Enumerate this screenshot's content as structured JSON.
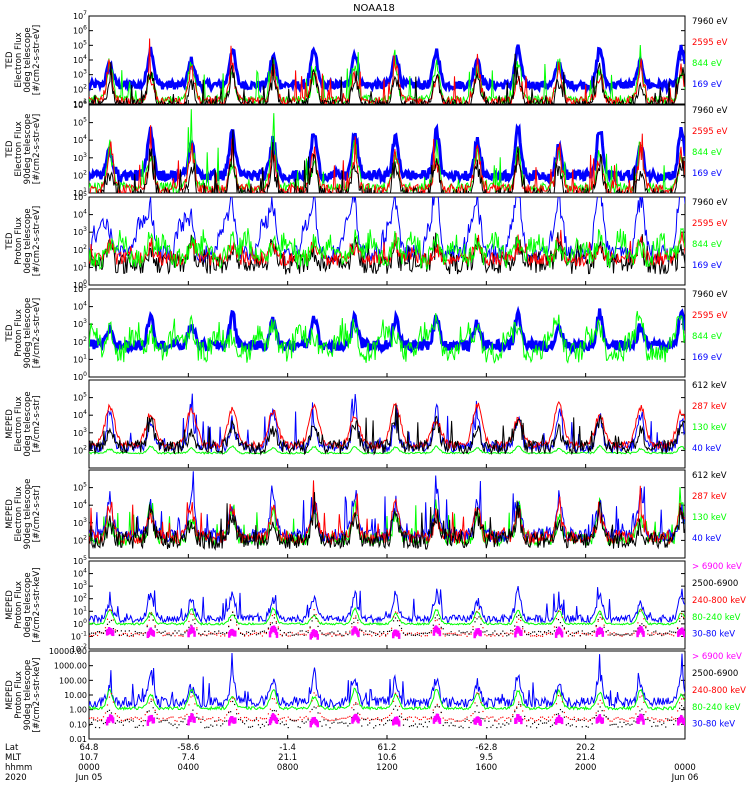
{
  "title": "NOAA18",
  "colors": {
    "black": "#000000",
    "red": "#ff0000",
    "green": "#00ff00",
    "blue": "#0000ff",
    "magenta": "#ff00ff"
  },
  "chart_data": [
    {
      "type": "line",
      "ylabel": [
        "TED",
        "Electron Flux",
        "0deg telescope",
        "[#/cm2-s-str-eV]"
      ],
      "ylog": true,
      "ylim_exp": [
        1,
        7
      ],
      "ytick_labels": [
        "10^1",
        "10^2",
        "10^3",
        "10^4",
        "10^5",
        "10^6",
        "10^7"
      ],
      "legend": [
        {
          "label": "7960 eV",
          "color": "#000000"
        },
        {
          "label": "2595 eV",
          "color": "#ff0000"
        },
        {
          "label": "844 eV",
          "color": "#00ff00"
        },
        {
          "label": "169 eV",
          "color": "#0000ff"
        }
      ],
      "series": [
        {
          "color": "#0000ff",
          "base": 2.3,
          "noise": 0.3,
          "peak": 2.5,
          "kind": "band"
        },
        {
          "color": "#00ff00",
          "base": 1.3,
          "noise": 0.3,
          "peak": 3.2,
          "kind": "spiky"
        },
        {
          "color": "#ff0000",
          "base": 1.2,
          "noise": 0.3,
          "peak": 3.0,
          "kind": "spiky"
        },
        {
          "color": "#000000",
          "base": 1.0,
          "noise": 0.3,
          "peak": 2.8,
          "kind": "spiky"
        }
      ]
    },
    {
      "type": "line",
      "ylabel": [
        "TED",
        "Electron Flux",
        "90deg telescope",
        "[#/cm2-s-str-eV]"
      ],
      "ylog": true,
      "ylim_exp": [
        1,
        6
      ],
      "ytick_labels": [
        "10^1",
        "10^2",
        "10^3",
        "10^4",
        "10^5",
        "10^6"
      ],
      "legend": [
        {
          "label": "7960 eV",
          "color": "#000000"
        },
        {
          "label": "2595 eV",
          "color": "#ff0000"
        },
        {
          "label": "844 eV",
          "color": "#00ff00"
        },
        {
          "label": "169 eV",
          "color": "#0000ff"
        }
      ],
      "series": [
        {
          "color": "#0000ff",
          "base": 2.0,
          "noise": 0.3,
          "peak": 2.6,
          "kind": "band"
        },
        {
          "color": "#00ff00",
          "base": 1.3,
          "noise": 0.3,
          "peak": 3.0,
          "kind": "spiky"
        },
        {
          "color": "#ff0000",
          "base": 1.2,
          "noise": 0.3,
          "peak": 2.8,
          "kind": "spiky"
        },
        {
          "color": "#000000",
          "base": 0.9,
          "noise": 0.4,
          "peak": 2.6,
          "kind": "spiky"
        }
      ]
    },
    {
      "type": "line",
      "ylabel": [
        "TED",
        "Proton Flux",
        "0deg telescope",
        "[#/cm2-s-str-eV]"
      ],
      "ylog": true,
      "ylim_exp": [
        0,
        5
      ],
      "ytick_labels": [
        "10^0",
        "10^1",
        "10^2",
        "10^3",
        "10^4",
        "10^5"
      ],
      "legend": [
        {
          "label": "7960 eV",
          "color": "#000000"
        },
        {
          "label": "2595 eV",
          "color": "#ff0000"
        },
        {
          "label": "844 eV",
          "color": "#00ff00"
        },
        {
          "label": "169 eV",
          "color": "#0000ff"
        }
      ],
      "series": [
        {
          "color": "#0000ff",
          "base": 1.8,
          "noise": 0.5,
          "peak": 2.3,
          "kind": "wavy"
        },
        {
          "color": "#000000",
          "base": 1.2,
          "noise": 0.6,
          "peak": 1.5,
          "kind": "spiky"
        },
        {
          "color": "#ff0000",
          "base": 1.5,
          "noise": 0.4,
          "peak": 1.2,
          "kind": "spiky"
        },
        {
          "color": "#00ff00",
          "base": 1.5,
          "noise": 0.6,
          "peak": 1.3,
          "kind": "wavy"
        }
      ]
    },
    {
      "type": "line",
      "ylabel": [
        "TED",
        "Proton Flux",
        "90deg telescope",
        "[#/cm2-s-str-eV]"
      ],
      "ylog": true,
      "ylim_exp": [
        0,
        5
      ],
      "ytick_labels": [
        "10^0",
        "10^1",
        "10^2",
        "10^3",
        "10^4",
        "10^5"
      ],
      "legend": [
        {
          "label": "7960 eV",
          "color": "#000000"
        },
        {
          "label": "2595 eV",
          "color": "#ff0000"
        },
        {
          "label": "844 eV",
          "color": "#00ff00"
        },
        {
          "label": "169 eV",
          "color": "#0000ff"
        }
      ],
      "series": [
        {
          "color": "#0000ff",
          "base": 1.8,
          "noise": 0.3,
          "peak": 1.8,
          "kind": "band"
        },
        {
          "color": "#00ff00",
          "base": 1.4,
          "noise": 0.6,
          "peak": 1.6,
          "kind": "wavy"
        }
      ]
    },
    {
      "type": "line",
      "ylabel": [
        "MEPED",
        "Electron Flux",
        "0deg telescope",
        "[#/cm2-s-str]"
      ],
      "ylog": true,
      "ylim_exp": [
        1,
        6
      ],
      "ytick_labels": [
        "10^2",
        "10^3",
        "10^4",
        "10^5"
      ],
      "ytick_exps": [
        2,
        3,
        4,
        5
      ],
      "legend": [
        {
          "label": "612 keV",
          "color": "#000000"
        },
        {
          "label": "287 keV",
          "color": "#ff0000"
        },
        {
          "label": "130 keV",
          "color": "#00ff00"
        },
        {
          "label": "40 keV",
          "color": "#0000ff"
        }
      ],
      "series": [
        {
          "color": "#00ff00",
          "base": 1.85,
          "noise": 0.05,
          "peak": 0.4,
          "kind": "flat"
        },
        {
          "color": "#0000ff",
          "base": 2.2,
          "noise": 0.3,
          "peak": 2.5,
          "kind": "spiky"
        },
        {
          "color": "#ff0000",
          "base": 2.3,
          "noise": 0.2,
          "peak": 2.3,
          "kind": "hump"
        },
        {
          "color": "#000000",
          "base": 2.2,
          "noise": 0.4,
          "peak": 2.0,
          "kind": "spiky"
        }
      ]
    },
    {
      "type": "line",
      "ylabel": [
        "MEPED",
        "Electron Flux",
        "90deg telescope",
        "[#/cm2-s-str]"
      ],
      "ylog": true,
      "ylim_exp": [
        1,
        6
      ],
      "ytick_labels": [
        "10^2",
        "10^3",
        "10^4",
        "10^5"
      ],
      "ytick_exps": [
        2,
        3,
        4,
        5
      ],
      "legend": [
        {
          "label": "612 keV",
          "color": "#000000"
        },
        {
          "label": "287 keV",
          "color": "#ff0000"
        },
        {
          "label": "130 keV",
          "color": "#00ff00"
        },
        {
          "label": "40 keV",
          "color": "#0000ff"
        }
      ],
      "series": [
        {
          "color": "#00ff00",
          "base": 2.1,
          "noise": 0.4,
          "peak": 2.2,
          "kind": "spiky"
        },
        {
          "color": "#0000ff",
          "base": 2.3,
          "noise": 0.4,
          "peak": 2.8,
          "kind": "spiky"
        },
        {
          "color": "#ff0000",
          "base": 2.2,
          "noise": 0.4,
          "peak": 2.4,
          "kind": "spiky"
        },
        {
          "color": "#000000",
          "base": 2.0,
          "noise": 0.5,
          "peak": 2.0,
          "kind": "spiky"
        }
      ]
    },
    {
      "type": "line",
      "ylabel": [
        "MEPED",
        "Proton Flux",
        "0deg telescope",
        "[#/cm2-s-str-keV]"
      ],
      "ylog": true,
      "ylim_exp": [
        -2,
        5
      ],
      "ytick_labels": [
        "10^-2",
        "10^-1",
        "10^0",
        "10^1",
        "10^2",
        "10^3",
        "10^4",
        "10^5"
      ],
      "legend": [
        {
          "label": "> 6900 keV",
          "color": "#ff00ff"
        },
        {
          "label": "2500-6900",
          "color": "#000000"
        },
        {
          "label": "240-800 keV",
          "color": "#ff0000"
        },
        {
          "label": "80-240 keV",
          "color": "#00ff00"
        },
        {
          "label": "30-80 keV",
          "color": "#0000ff"
        }
      ],
      "series": [
        {
          "color": "#0000ff",
          "base": 0.4,
          "noise": 0.3,
          "peak": 2.5,
          "kind": "spiky"
        },
        {
          "color": "#00ff00",
          "base": 0.0,
          "noise": 0.08,
          "peak": 1.2,
          "kind": "flat"
        },
        {
          "color": "#ff0000",
          "base": -0.8,
          "noise": 0.15,
          "peak": 2.0,
          "kind": "dots"
        },
        {
          "color": "#000000",
          "base": -0.7,
          "noise": 0.2,
          "peak": 1.5,
          "kind": "dots"
        },
        {
          "color": "#ff00ff",
          "base": -1.2,
          "noise": 0.1,
          "peak": 0.8,
          "kind": "blocks"
        }
      ]
    },
    {
      "type": "line",
      "ylabel": [
        "MEPED",
        "Proton Flux",
        "90deg telescope",
        "[#/cm2-s-str-keV]"
      ],
      "ylog": true,
      "ylim_exp": [
        -2,
        4
      ],
      "ytick_labels": [
        "0.01",
        "0.10",
        "1.00",
        "10.00",
        "100.00",
        "1000.00",
        "10000.00"
      ],
      "legend": [
        {
          "label": "> 6900 keV",
          "color": "#ff00ff"
        },
        {
          "label": "2500-6900",
          "color": "#000000"
        },
        {
          "label": "240-800 keV",
          "color": "#ff0000"
        },
        {
          "label": "80-240 keV",
          "color": "#00ff00"
        },
        {
          "label": "30-80 keV",
          "color": "#0000ff"
        }
      ],
      "series": [
        {
          "color": "#0000ff",
          "base": 0.5,
          "noise": 0.35,
          "peak": 2.2,
          "kind": "spiky"
        },
        {
          "color": "#00ff00",
          "base": 0.1,
          "noise": 0.1,
          "peak": 1.3,
          "kind": "flat"
        },
        {
          "color": "#ff0000",
          "base": -0.6,
          "noise": 0.15,
          "peak": 1.8,
          "kind": "dots"
        },
        {
          "color": "#000000",
          "base": -0.9,
          "noise": 0.3,
          "peak": 1.4,
          "kind": "dots"
        },
        {
          "color": "#ff00ff",
          "base": -1.1,
          "noise": 0.1,
          "peak": 0.6,
          "kind": "blocks"
        }
      ]
    }
  ],
  "x_axis": {
    "row_labels": [
      "Lat",
      "MLT",
      "hhmm",
      "2020"
    ],
    "ticks": [
      {
        "frac": 0.0,
        "lines": [
          "64.8",
          "10.7",
          "0000",
          "Jun 05"
        ]
      },
      {
        "frac": 0.1667,
        "lines": [
          "-58.6",
          "7.4",
          "0400",
          ""
        ]
      },
      {
        "frac": 0.3333,
        "lines": [
          "-1.4",
          "21.1",
          "0800",
          ""
        ]
      },
      {
        "frac": 0.5,
        "lines": [
          "61.2",
          "10.6",
          "1200",
          ""
        ]
      },
      {
        "frac": 0.6667,
        "lines": [
          "-62.8",
          "9.5",
          "1600",
          ""
        ]
      },
      {
        "frac": 0.8333,
        "lines": [
          "20.2",
          "21.4",
          "2000",
          ""
        ]
      },
      {
        "frac": 1.0,
        "lines": [
          "",
          "",
          "0000",
          "Jun 06"
        ]
      }
    ]
  }
}
